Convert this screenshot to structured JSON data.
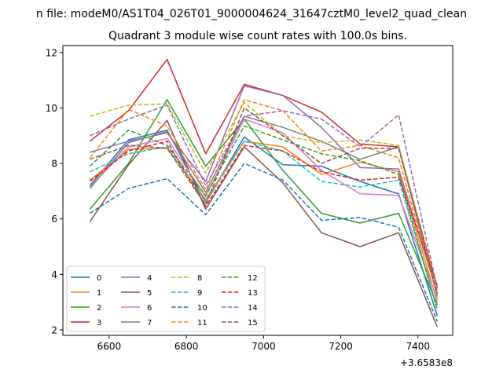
{
  "chart_data": {
    "type": "line",
    "suptitle": "n file: modeM0/AS1T04_026T01_9000004624_31647cztM0_level2_quad_clean",
    "title": "Quadrant 3 module wise count rates with 100.0s bins.",
    "xlabel": "",
    "ylabel": "",
    "x_offset_label": "+3.6583e8",
    "x": [
      6550,
      6650,
      6750,
      6850,
      6950,
      7050,
      7150,
      7250,
      7350,
      7450
    ],
    "xlim": [
      6480,
      7490
    ],
    "ylim": [
      1.8,
      12.25
    ],
    "xticks": [
      6600,
      6800,
      7000,
      7200,
      7400
    ],
    "yticks": [
      2,
      4,
      6,
      8,
      10,
      12
    ],
    "grid": false,
    "legend": {
      "placement": "lower-left",
      "columns": 4
    },
    "series": [
      {
        "name": "0",
        "color": "#1f77b4",
        "dash": "solid",
        "values": [
          7.2,
          8.85,
          9.2,
          6.6,
          8.95,
          7.95,
          7.9,
          7.35,
          6.9,
          2.5
        ]
      },
      {
        "name": "1",
        "color": "#ff7f0e",
        "dash": "solid",
        "values": [
          7.4,
          8.5,
          8.55,
          6.7,
          8.8,
          8.6,
          7.6,
          8.05,
          7.7,
          3.0
        ]
      },
      {
        "name": "2",
        "color": "#2ca02c",
        "dash": "solid",
        "values": [
          6.35,
          8.0,
          10.3,
          7.9,
          9.6,
          7.75,
          6.2,
          5.85,
          6.2,
          2.9
        ]
      },
      {
        "name": "3",
        "color": "#d62728",
        "dash": "solid",
        "values": [
          8.8,
          9.9,
          11.75,
          8.35,
          10.85,
          10.45,
          9.85,
          8.7,
          8.6,
          3.5
        ]
      },
      {
        "name": "4",
        "color": "#9467bd",
        "dash": "solid",
        "values": [
          8.4,
          8.8,
          9.1,
          7.35,
          10.8,
          10.45,
          9.3,
          7.85,
          7.8,
          3.3
        ]
      },
      {
        "name": "5",
        "color": "#8c564b",
        "dash": "solid",
        "values": [
          5.9,
          7.95,
          9.55,
          6.35,
          8.6,
          7.3,
          5.5,
          5.0,
          5.5,
          2.1
        ]
      },
      {
        "name": "6",
        "color": "#e377c2",
        "dash": "solid",
        "values": [
          7.15,
          8.6,
          8.9,
          6.8,
          9.6,
          9.1,
          7.75,
          6.9,
          6.85,
          3.1
        ]
      },
      {
        "name": "7",
        "color": "#7f7f7f",
        "dash": "solid",
        "values": [
          7.1,
          8.75,
          9.15,
          6.95,
          9.7,
          9.3,
          8.8,
          8.15,
          8.6,
          3.2
        ]
      },
      {
        "name": "8",
        "color": "#bcbd22",
        "dash": "dashed",
        "values": [
          9.7,
          10.1,
          10.15,
          7.65,
          10.2,
          9.0,
          8.75,
          8.85,
          8.65,
          3.4
        ]
      },
      {
        "name": "9",
        "color": "#17becf",
        "dash": "dashed",
        "values": [
          7.7,
          8.35,
          8.6,
          6.6,
          8.8,
          8.45,
          7.35,
          7.15,
          7.4,
          2.8
        ]
      },
      {
        "name": "10",
        "color": "#1f77b4",
        "dash": "dashed",
        "values": [
          6.2,
          7.1,
          7.45,
          6.15,
          8.0,
          7.4,
          5.95,
          6.05,
          5.7,
          2.3
        ]
      },
      {
        "name": "11",
        "color": "#ff7f0e",
        "dash": "dashed",
        "values": [
          8.2,
          9.95,
          9.35,
          7.05,
          10.3,
          9.9,
          8.45,
          8.65,
          8.2,
          3.2
        ]
      },
      {
        "name": "12",
        "color": "#2ca02c",
        "dash": "dashed",
        "values": [
          7.9,
          9.2,
          8.65,
          6.85,
          9.35,
          8.85,
          8.35,
          8.1,
          7.6,
          2.7
        ]
      },
      {
        "name": "13",
        "color": "#d62728",
        "dash": "dashed",
        "values": [
          7.35,
          8.45,
          8.8,
          6.45,
          8.65,
          8.45,
          7.7,
          7.4,
          7.5,
          3.6
        ]
      },
      {
        "name": "14",
        "color": "#9467bd",
        "dash": "dashed",
        "values": [
          9.0,
          9.6,
          10.1,
          7.2,
          9.7,
          9.9,
          9.6,
          8.6,
          9.75,
          3.5
        ]
      },
      {
        "name": "15",
        "color": "#8c564b",
        "dash": "dashed",
        "values": [
          8.15,
          8.65,
          8.55,
          6.5,
          10.0,
          9.0,
          8.0,
          8.55,
          8.55,
          3.3
        ]
      }
    ]
  }
}
